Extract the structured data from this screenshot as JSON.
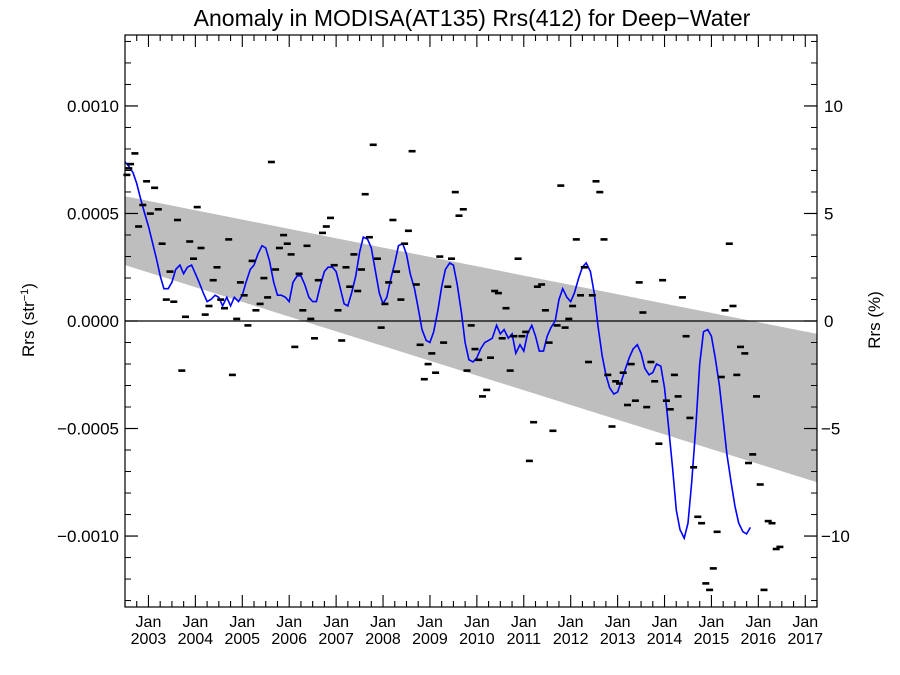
{
  "chart_data": {
    "type": "scatter",
    "title": "Anomaly in MODISA(AT135) Rrs(412) for Deep−Water",
    "ylabel_left_main": "Rrs (str",
    "ylabel_left_sup": "−1",
    "ylabel_left_end": ")",
    "ylabel_right": "Rrs (%)",
    "xlim": [
      2002.5,
      2017.25
    ],
    "ylim": [
      -0.00133,
      0.00133
    ],
    "ylim_right_percent": [
      -13.3,
      13.3
    ],
    "y_ticks": [
      {
        "value": 0.001,
        "label": "0.0010"
      },
      {
        "value": 0.0005,
        "label": "0.0005"
      },
      {
        "value": 0.0,
        "label": "0.0000"
      },
      {
        "value": -0.0005,
        "label": "−0.0005"
      },
      {
        "value": -0.001,
        "label": "−0.0010"
      }
    ],
    "y_ticks_right": [
      {
        "value": 10,
        "label": "10"
      },
      {
        "value": 5,
        "label": "5"
      },
      {
        "value": 0,
        "label": "0"
      },
      {
        "value": -5,
        "label": "−5"
      },
      {
        "value": -10,
        "label": "−10"
      }
    ],
    "x_month_label": "Jan",
    "x_years": [
      "2003",
      "2004",
      "2005",
      "2006",
      "2007",
      "2008",
      "2009",
      "2010",
      "2011",
      "2012",
      "2013",
      "2014",
      "2015",
      "2016",
      "2017"
    ],
    "zero_line": true,
    "band": {
      "color": "#bebebe",
      "start": {
        "x": 2002.5,
        "upper": 0.00058,
        "lower": 0.00026
      },
      "end": {
        "x": 2017.25,
        "upper": -6e-05,
        "lower": -0.00075
      }
    },
    "colors": {
      "smooth_line": "#0000ff",
      "points": "#000000",
      "band": "#bebebe",
      "axis": "#000000"
    },
    "points": [
      [
        2002.54,
        0.00068
      ],
      [
        2002.62,
        0.00073
      ],
      [
        2002.71,
        0.00078
      ],
      [
        2002.79,
        0.00044
      ],
      [
        2002.88,
        0.00054
      ],
      [
        2002.96,
        0.00065
      ],
      [
        2003.04,
        0.0005
      ],
      [
        2003.13,
        0.00062
      ],
      [
        2003.21,
        0.00052
      ],
      [
        2003.29,
        0.00036
      ],
      [
        2003.38,
        0.0001
      ],
      [
        2003.46,
        0.00023
      ],
      [
        2003.54,
        9e-05
      ],
      [
        2003.62,
        0.00047
      ],
      [
        2003.71,
        -0.00023
      ],
      [
        2003.79,
        2e-05
      ],
      [
        2003.88,
        0.00037
      ],
      [
        2003.96,
        0.00029
      ],
      [
        2004.04,
        0.00053
      ],
      [
        2004.12,
        0.00034
      ],
      [
        2004.21,
        3e-05
      ],
      [
        2004.29,
        7e-05
      ],
      [
        2004.38,
        0.00019
      ],
      [
        2004.46,
        0.00025
      ],
      [
        2004.54,
        0.0001
      ],
      [
        2004.62,
        6e-05
      ],
      [
        2004.71,
        0.00038
      ],
      [
        2004.79,
        -0.00025
      ],
      [
        2004.88,
        1e-05
      ],
      [
        2004.96,
        0.00018
      ],
      [
        2005.04,
        0.00012
      ],
      [
        2005.12,
        -2e-05
      ],
      [
        2005.21,
        0.00028
      ],
      [
        2005.29,
        5e-05
      ],
      [
        2005.38,
        8e-05
      ],
      [
        2005.46,
        0.0002
      ],
      [
        2005.54,
        0.00011
      ],
      [
        2005.62,
        0.00074
      ],
      [
        2005.71,
        0.00024
      ],
      [
        2005.79,
        0.00034
      ],
      [
        2005.88,
        0.0004
      ],
      [
        2005.96,
        0.00036
      ],
      [
        2006.04,
        0.00031
      ],
      [
        2006.12,
        -0.00012
      ],
      [
        2006.21,
        0.00022
      ],
      [
        2006.29,
        5e-05
      ],
      [
        2006.38,
        0.00035
      ],
      [
        2006.46,
        1e-05
      ],
      [
        2006.54,
        -8e-05
      ],
      [
        2006.62,
        0.00019
      ],
      [
        2006.71,
        0.00041
      ],
      [
        2006.79,
        0.00044
      ],
      [
        2006.88,
        0.00048
      ],
      [
        2006.96,
        0.00026
      ],
      [
        2007.04,
        5e-05
      ],
      [
        2007.12,
        -9e-05
      ],
      [
        2007.21,
        0.00025
      ],
      [
        2007.29,
        0.00016
      ],
      [
        2007.38,
        0.00031
      ],
      [
        2007.46,
        0.00014
      ],
      [
        2007.54,
        0.00024
      ],
      [
        2007.62,
        0.00059
      ],
      [
        2007.71,
        0.00039
      ],
      [
        2007.79,
        0.00082
      ],
      [
        2007.88,
        0.00029
      ],
      [
        2007.96,
        -3e-05
      ],
      [
        2008.04,
        8e-05
      ],
      [
        2008.12,
        0.00018
      ],
      [
        2008.21,
        0.00047
      ],
      [
        2008.29,
        0.00023
      ],
      [
        2008.38,
        0.0001
      ],
      [
        2008.46,
        0.00036
      ],
      [
        2008.54,
        0.00042
      ],
      [
        2008.62,
        0.00079
      ],
      [
        2008.71,
        0.00017
      ],
      [
        2008.79,
        -0.00011
      ],
      [
        2008.88,
        -0.00027
      ],
      [
        2008.96,
        -0.0002
      ],
      [
        2009.04,
        -0.00015
      ],
      [
        2009.12,
        -0.00024
      ],
      [
        2009.21,
        0.0003
      ],
      [
        2009.29,
        -0.0001
      ],
      [
        2009.38,
        0.00016
      ],
      [
        2009.46,
        0.00029
      ],
      [
        2009.54,
        0.0006
      ],
      [
        2009.62,
        0.00049
      ],
      [
        2009.71,
        0.00052
      ],
      [
        2009.79,
        -0.00023
      ],
      [
        2009.88,
        -2e-05
      ],
      [
        2009.96,
        -0.00013
      ],
      [
        2010.04,
        -0.00018
      ],
      [
        2010.12,
        -0.00035
      ],
      [
        2010.21,
        -0.00032
      ],
      [
        2010.29,
        -0.00017
      ],
      [
        2010.38,
        0.00014
      ],
      [
        2010.46,
        0.00013
      ],
      [
        2010.54,
        -8e-05
      ],
      [
        2010.62,
        6e-05
      ],
      [
        2010.71,
        -0.00023
      ],
      [
        2010.79,
        -7e-05
      ],
      [
        2010.88,
        0.00029
      ],
      [
        2010.96,
        -7e-05
      ],
      [
        2011.04,
        -5e-05
      ],
      [
        2011.12,
        -0.00065
      ],
      [
        2011.21,
        -0.00047
      ],
      [
        2011.29,
        0.00016
      ],
      [
        2011.38,
        0.00017
      ],
      [
        2011.46,
        5e-05
      ],
      [
        2011.54,
        -0.0001
      ],
      [
        2011.62,
        -0.00051
      ],
      [
        2011.71,
        -2e-05
      ],
      [
        2011.79,
        0.00063
      ],
      [
        2011.88,
        -3e-05
      ],
      [
        2011.96,
        1e-05
      ],
      [
        2012.04,
        7e-05
      ],
      [
        2012.12,
        0.00038
      ],
      [
        2012.21,
        0.00012
      ],
      [
        2012.29,
        0.00025
      ],
      [
        2012.38,
        -0.00019
      ],
      [
        2012.46,
        0.00012
      ],
      [
        2012.54,
        0.00065
      ],
      [
        2012.62,
        0.0006
      ],
      [
        2012.71,
        0.00038
      ],
      [
        2012.79,
        -0.00025
      ],
      [
        2012.88,
        -0.00049
      ],
      [
        2012.96,
        -0.00028
      ],
      [
        2013.04,
        -0.00029
      ],
      [
        2013.12,
        -0.00024
      ],
      [
        2013.21,
        -0.00039
      ],
      [
        2013.29,
        -0.0002
      ],
      [
        2013.38,
        -0.00037
      ],
      [
        2013.46,
        0.00018
      ],
      [
        2013.54,
        4e-05
      ],
      [
        2013.62,
        -0.0004
      ],
      [
        2013.71,
        -0.00019
      ],
      [
        2013.79,
        -0.00028
      ],
      [
        2013.88,
        -0.00057
      ],
      [
        2013.96,
        0.00019
      ],
      [
        2014.04,
        -0.00037
      ],
      [
        2014.12,
        -0.00041
      ],
      [
        2014.21,
        -0.00025
      ],
      [
        2014.29,
        -0.00035
      ],
      [
        2014.38,
        0.00011
      ],
      [
        2014.46,
        -7e-05
      ],
      [
        2014.54,
        -0.00045
      ],
      [
        2014.62,
        -0.00068
      ],
      [
        2014.71,
        -0.00091
      ],
      [
        2014.79,
        -0.00094
      ],
      [
        2014.88,
        -0.00122
      ],
      [
        2014.96,
        -0.00125
      ],
      [
        2015.04,
        -0.00115
      ],
      [
        2015.12,
        -0.00098
      ],
      [
        2015.21,
        -0.00026
      ],
      [
        2015.29,
        5e-05
      ],
      [
        2015.38,
        0.00036
      ],
      [
        2015.46,
        7e-05
      ],
      [
        2015.54,
        -0.00025
      ],
      [
        2015.62,
        -0.00012
      ],
      [
        2015.71,
        -0.00015
      ],
      [
        2015.79,
        -0.00066
      ],
      [
        2015.88,
        -0.00062
      ],
      [
        2015.96,
        -0.00035
      ],
      [
        2016.04,
        -0.00076
      ],
      [
        2016.12,
        -0.00125
      ],
      [
        2016.21,
        -0.00093
      ],
      [
        2016.29,
        -0.00094
      ],
      [
        2016.38,
        -0.00106
      ],
      [
        2016.46,
        -0.00105
      ],
      [
        2002.58,
        0.00071
      ]
    ],
    "smooth_line": [
      [
        2002.5,
        0.00074
      ],
      [
        2002.58,
        0.00072
      ],
      [
        2002.67,
        0.00069
      ],
      [
        2002.75,
        0.00064
      ],
      [
        2002.83,
        0.00057
      ],
      [
        2002.92,
        0.0005
      ],
      [
        2003.0,
        0.00044
      ],
      [
        2003.08,
        0.00037
      ],
      [
        2003.17,
        0.00029
      ],
      [
        2003.25,
        0.00021
      ],
      [
        2003.33,
        0.00015
      ],
      [
        2003.42,
        0.00015
      ],
      [
        2003.5,
        0.00018
      ],
      [
        2003.58,
        0.00024
      ],
      [
        2003.67,
        0.00026
      ],
      [
        2003.75,
        0.00022
      ],
      [
        2003.83,
        0.00025
      ],
      [
        2003.92,
        0.00026
      ],
      [
        2004.0,
        0.00022
      ],
      [
        2004.08,
        0.00018
      ],
      [
        2004.17,
        0.00013
      ],
      [
        2004.25,
        9e-05
      ],
      [
        2004.33,
        0.0001
      ],
      [
        2004.42,
        0.00012
      ],
      [
        2004.5,
        0.00011
      ],
      [
        2004.58,
        7e-05
      ],
      [
        2004.67,
        0.00011
      ],
      [
        2004.75,
        7e-05
      ],
      [
        2004.83,
        0.00011
      ],
      [
        2004.92,
        9e-05
      ],
      [
        2005.0,
        0.00012
      ],
      [
        2005.08,
        0.00018
      ],
      [
        2005.17,
        0.00024
      ],
      [
        2005.25,
        0.00026
      ],
      [
        2005.33,
        0.00031
      ],
      [
        2005.42,
        0.00035
      ],
      [
        2005.5,
        0.00034
      ],
      [
        2005.58,
        0.00028
      ],
      [
        2005.67,
        0.00018
      ],
      [
        2005.75,
        0.00012
      ],
      [
        2005.83,
        0.00012
      ],
      [
        2005.92,
        0.00011
      ],
      [
        2006.0,
        9e-05
      ],
      [
        2006.08,
        0.00018
      ],
      [
        2006.17,
        0.00021
      ],
      [
        2006.25,
        0.00021
      ],
      [
        2006.33,
        0.00017
      ],
      [
        2006.42,
        0.00011
      ],
      [
        2006.5,
        9e-05
      ],
      [
        2006.58,
        9e-05
      ],
      [
        2006.67,
        0.00017
      ],
      [
        2006.75,
        0.00023
      ],
      [
        2006.83,
        0.00025
      ],
      [
        2006.92,
        0.00025
      ],
      [
        2007.0,
        0.00023
      ],
      [
        2007.08,
        0.00016
      ],
      [
        2007.17,
        8e-05
      ],
      [
        2007.25,
        7e-05
      ],
      [
        2007.33,
        0.00013
      ],
      [
        2007.42,
        0.00021
      ],
      [
        2007.5,
        0.00032
      ],
      [
        2007.58,
        0.00039
      ],
      [
        2007.67,
        0.00038
      ],
      [
        2007.75,
        0.00034
      ],
      [
        2007.83,
        0.00024
      ],
      [
        2007.92,
        0.00013
      ],
      [
        2008.0,
        8e-05
      ],
      [
        2008.08,
        0.00011
      ],
      [
        2008.17,
        0.0002
      ],
      [
        2008.25,
        0.00027
      ],
      [
        2008.33,
        0.00035
      ],
      [
        2008.42,
        0.00036
      ],
      [
        2008.5,
        0.00031
      ],
      [
        2008.58,
        0.00022
      ],
      [
        2008.67,
        0.00015
      ],
      [
        2008.75,
        6e-05
      ],
      [
        2008.83,
        -4e-05
      ],
      [
        2008.92,
        -9e-05
      ],
      [
        2009.0,
        -0.0001
      ],
      [
        2009.08,
        -5e-05
      ],
      [
        2009.17,
        5e-05
      ],
      [
        2009.25,
        0.00016
      ],
      [
        2009.33,
        0.00024
      ],
      [
        2009.42,
        0.00027
      ],
      [
        2009.5,
        0.00026
      ],
      [
        2009.58,
        0.00017
      ],
      [
        2009.67,
        4e-05
      ],
      [
        2009.75,
        -0.0001
      ],
      [
        2009.83,
        -0.00018
      ],
      [
        2009.92,
        -0.00019
      ],
      [
        2010.0,
        -0.00017
      ],
      [
        2010.08,
        -0.00013
      ],
      [
        2010.17,
        -0.0001
      ],
      [
        2010.25,
        -9e-05
      ],
      [
        2010.33,
        -8e-05
      ],
      [
        2010.42,
        -2e-05
      ],
      [
        2010.5,
        -6e-05
      ],
      [
        2010.58,
        -4e-05
      ],
      [
        2010.67,
        -8e-05
      ],
      [
        2010.75,
        -6e-05
      ],
      [
        2010.83,
        -0.00015
      ],
      [
        2010.92,
        -0.00011
      ],
      [
        2011.0,
        -0.00014
      ],
      [
        2011.08,
        -6e-05
      ],
      [
        2011.17,
        -2e-05
      ],
      [
        2011.25,
        -7e-05
      ],
      [
        2011.33,
        -0.00014
      ],
      [
        2011.42,
        -0.00014
      ],
      [
        2011.5,
        -7e-05
      ],
      [
        2011.58,
        -3e-05
      ],
      [
        2011.67,
        0.0
      ],
      [
        2011.75,
        0.0001
      ],
      [
        2011.83,
        0.00015
      ],
      [
        2011.92,
        0.00011
      ],
      [
        2012.0,
        9e-05
      ],
      [
        2012.08,
        0.00013
      ],
      [
        2012.17,
        0.0002
      ],
      [
        2012.25,
        0.00025
      ],
      [
        2012.33,
        0.00027
      ],
      [
        2012.42,
        0.00023
      ],
      [
        2012.5,
        0.00013
      ],
      [
        2012.58,
        -2e-05
      ],
      [
        2012.67,
        -0.00016
      ],
      [
        2012.75,
        -0.00025
      ],
      [
        2012.83,
        -0.00031
      ],
      [
        2012.92,
        -0.00034
      ],
      [
        2013.0,
        -0.00033
      ],
      [
        2013.08,
        -0.00028
      ],
      [
        2013.17,
        -0.00022
      ],
      [
        2013.25,
        -0.00017
      ],
      [
        2013.33,
        -0.00013
      ],
      [
        2013.42,
        -0.00011
      ],
      [
        2013.5,
        -0.00015
      ],
      [
        2013.58,
        -0.00022
      ],
      [
        2013.67,
        -0.00025
      ],
      [
        2013.75,
        -0.00024
      ],
      [
        2013.83,
        -0.0002
      ],
      [
        2013.92,
        -0.00021
      ],
      [
        2014.0,
        -0.00031
      ],
      [
        2014.08,
        -0.00048
      ],
      [
        2014.17,
        -0.00068
      ],
      [
        2014.25,
        -0.00088
      ],
      [
        2014.33,
        -0.00097
      ],
      [
        2014.42,
        -0.00101
      ],
      [
        2014.5,
        -0.00094
      ],
      [
        2014.58,
        -0.00075
      ],
      [
        2014.67,
        -0.00048
      ],
      [
        2014.75,
        -0.0002
      ],
      [
        2014.83,
        -5e-05
      ],
      [
        2014.92,
        -4e-05
      ],
      [
        2015.0,
        -7e-05
      ],
      [
        2015.08,
        -0.00017
      ],
      [
        2015.17,
        -0.0003
      ],
      [
        2015.25,
        -0.00046
      ],
      [
        2015.33,
        -0.00062
      ],
      [
        2015.42,
        -0.00075
      ],
      [
        2015.5,
        -0.00086
      ],
      [
        2015.58,
        -0.00094
      ],
      [
        2015.67,
        -0.00098
      ],
      [
        2015.75,
        -0.00099
      ],
      [
        2015.83,
        -0.00096
      ]
    ]
  }
}
